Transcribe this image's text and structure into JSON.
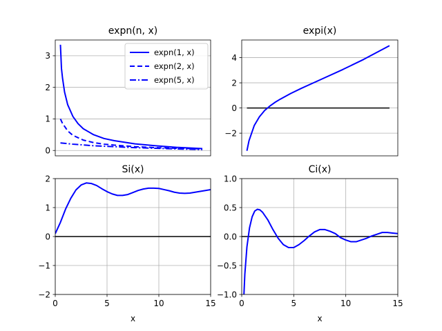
{
  "colors": {
    "line": "#0000ff",
    "zero": "#000000",
    "grid": "#b0b0b0",
    "legend_border": "#cccccc"
  },
  "chart_data": [
    {
      "id": "expn",
      "type": "line",
      "title": "expn(n, x)",
      "xlabel": "",
      "xlim": [
        0.3,
        15.3
      ],
      "ylim": [
        -0.17,
        3.5
      ],
      "xticks": [],
      "yticks": [
        0,
        1,
        2,
        3
      ],
      "ytick_labels": [
        "0",
        "1",
        "2",
        "3"
      ],
      "grid": "y",
      "legend": "top-right",
      "series": [
        {
          "name": "expn(1, x)",
          "style": "solid",
          "x": [
            0.8,
            0.9,
            1.0,
            1.2,
            1.5,
            2.0,
            2.5,
            3.0,
            4.0,
            5.0,
            6.0,
            8.0,
            10.0,
            12.0,
            14.5
          ],
          "y": [
            3.35,
            2.6,
            2.3,
            1.85,
            1.45,
            1.08,
            0.85,
            0.69,
            0.5,
            0.38,
            0.31,
            0.21,
            0.15,
            0.1,
            0.06
          ]
        },
        {
          "name": "expn(2, x)",
          "style": "dashed",
          "x": [
            0.8,
            1.0,
            1.5,
            2.0,
            3.0,
            4.0,
            5.0,
            6.0,
            8.0,
            10.0,
            12.0,
            14.5
          ],
          "y": [
            1.0,
            0.86,
            0.62,
            0.48,
            0.33,
            0.25,
            0.2,
            0.17,
            0.12,
            0.09,
            0.07,
            0.05
          ]
        },
        {
          "name": "expn(5, x)",
          "style": "dashdot",
          "x": [
            0.8,
            2.0,
            4.0,
            6.0,
            8.0,
            10.0,
            12.0,
            14.5
          ],
          "y": [
            0.24,
            0.2,
            0.15,
            0.12,
            0.09,
            0.07,
            0.05,
            0.03
          ]
        }
      ]
    },
    {
      "id": "expi",
      "type": "line",
      "title": "expi(x)",
      "xlabel": "",
      "xlim": [
        0.3,
        15.3
      ],
      "ylim": [
        -3.8,
        5.4
      ],
      "xticks": [],
      "yticks": [
        -2,
        0,
        2,
        4
      ],
      "ytick_labels": [
        "−2",
        "0",
        "2",
        "4"
      ],
      "grid": "y",
      "zero_line": [
        0.8,
        14.5
      ],
      "series": [
        {
          "name": "",
          "x": [
            0.8,
            1.0,
            1.5,
            2.0,
            2.5,
            3.0,
            3.5,
            4.0,
            5.0,
            6.0,
            8.0,
            10.0,
            12.0,
            14.5
          ],
          "y": [
            -3.4,
            -2.6,
            -1.4,
            -0.7,
            -0.2,
            0.15,
            0.45,
            0.7,
            1.15,
            1.55,
            2.3,
            3.05,
            3.85,
            4.95
          ]
        }
      ]
    },
    {
      "id": "si",
      "type": "line",
      "title": "Si(x)",
      "xlabel": "x",
      "xlim": [
        0,
        15
      ],
      "ylim": [
        -2,
        2
      ],
      "xticks": [
        0,
        5,
        10,
        15
      ],
      "xtick_labels": [
        "0",
        "5",
        "10",
        "15"
      ],
      "yticks": [
        -2,
        -1,
        0,
        1,
        2
      ],
      "ytick_labels": [
        "−2",
        "−1",
        "0",
        "1",
        "2"
      ],
      "grid": "both",
      "zero_line": [
        0,
        15
      ],
      "series": [
        {
          "name": "",
          "x": [
            0,
            0.5,
            1.0,
            1.5,
            2.0,
            2.5,
            3.0,
            3.5,
            4.0,
            4.5,
            5.0,
            5.5,
            6.0,
            6.5,
            7.0,
            7.5,
            8.0,
            8.5,
            9.0,
            9.5,
            10.0,
            10.5,
            11.0,
            11.5,
            12.0,
            12.5,
            13.0,
            13.5,
            14.0,
            14.5,
            15.0
          ],
          "y": [
            0.1,
            0.49,
            0.95,
            1.32,
            1.61,
            1.78,
            1.85,
            1.83,
            1.76,
            1.65,
            1.55,
            1.47,
            1.42,
            1.42,
            1.45,
            1.52,
            1.59,
            1.64,
            1.67,
            1.67,
            1.66,
            1.62,
            1.58,
            1.53,
            1.5,
            1.49,
            1.5,
            1.53,
            1.56,
            1.59,
            1.62
          ]
        }
      ]
    },
    {
      "id": "ci",
      "type": "line",
      "title": "Ci(x)",
      "xlabel": "x",
      "xlim": [
        0,
        15
      ],
      "ylim": [
        -1,
        1
      ],
      "xticks": [
        0,
        5,
        10,
        15
      ],
      "xtick_labels": [
        "0",
        "5",
        "10",
        "15"
      ],
      "yticks": [
        -1,
        -0.5,
        0,
        0.5,
        1
      ],
      "ytick_labels": [
        "−1.0",
        "−0.5",
        "0.0",
        "0.5",
        "1.0"
      ],
      "grid": "both",
      "zero_line": [
        0,
        15
      ],
      "series": [
        {
          "name": "",
          "x": [
            0.2,
            0.3,
            0.5,
            0.75,
            1.0,
            1.25,
            1.5,
            1.75,
            2.0,
            2.5,
            3.0,
            3.5,
            4.0,
            4.5,
            5.0,
            5.5,
            6.0,
            6.5,
            7.0,
            7.5,
            8.0,
            8.5,
            9.0,
            9.5,
            10.0,
            10.5,
            11.0,
            11.5,
            12.0,
            12.5,
            13.0,
            13.5,
            14.0,
            14.5,
            15.0
          ],
          "y": [
            -1.05,
            -0.65,
            -0.18,
            0.15,
            0.34,
            0.44,
            0.47,
            0.46,
            0.42,
            0.29,
            0.12,
            -0.03,
            -0.14,
            -0.19,
            -0.19,
            -0.14,
            -0.07,
            0.01,
            0.08,
            0.12,
            0.12,
            0.09,
            0.05,
            -0.02,
            -0.06,
            -0.09,
            -0.09,
            -0.06,
            -0.03,
            0.01,
            0.04,
            0.07,
            0.07,
            0.06,
            0.05
          ]
        }
      ]
    }
  ]
}
